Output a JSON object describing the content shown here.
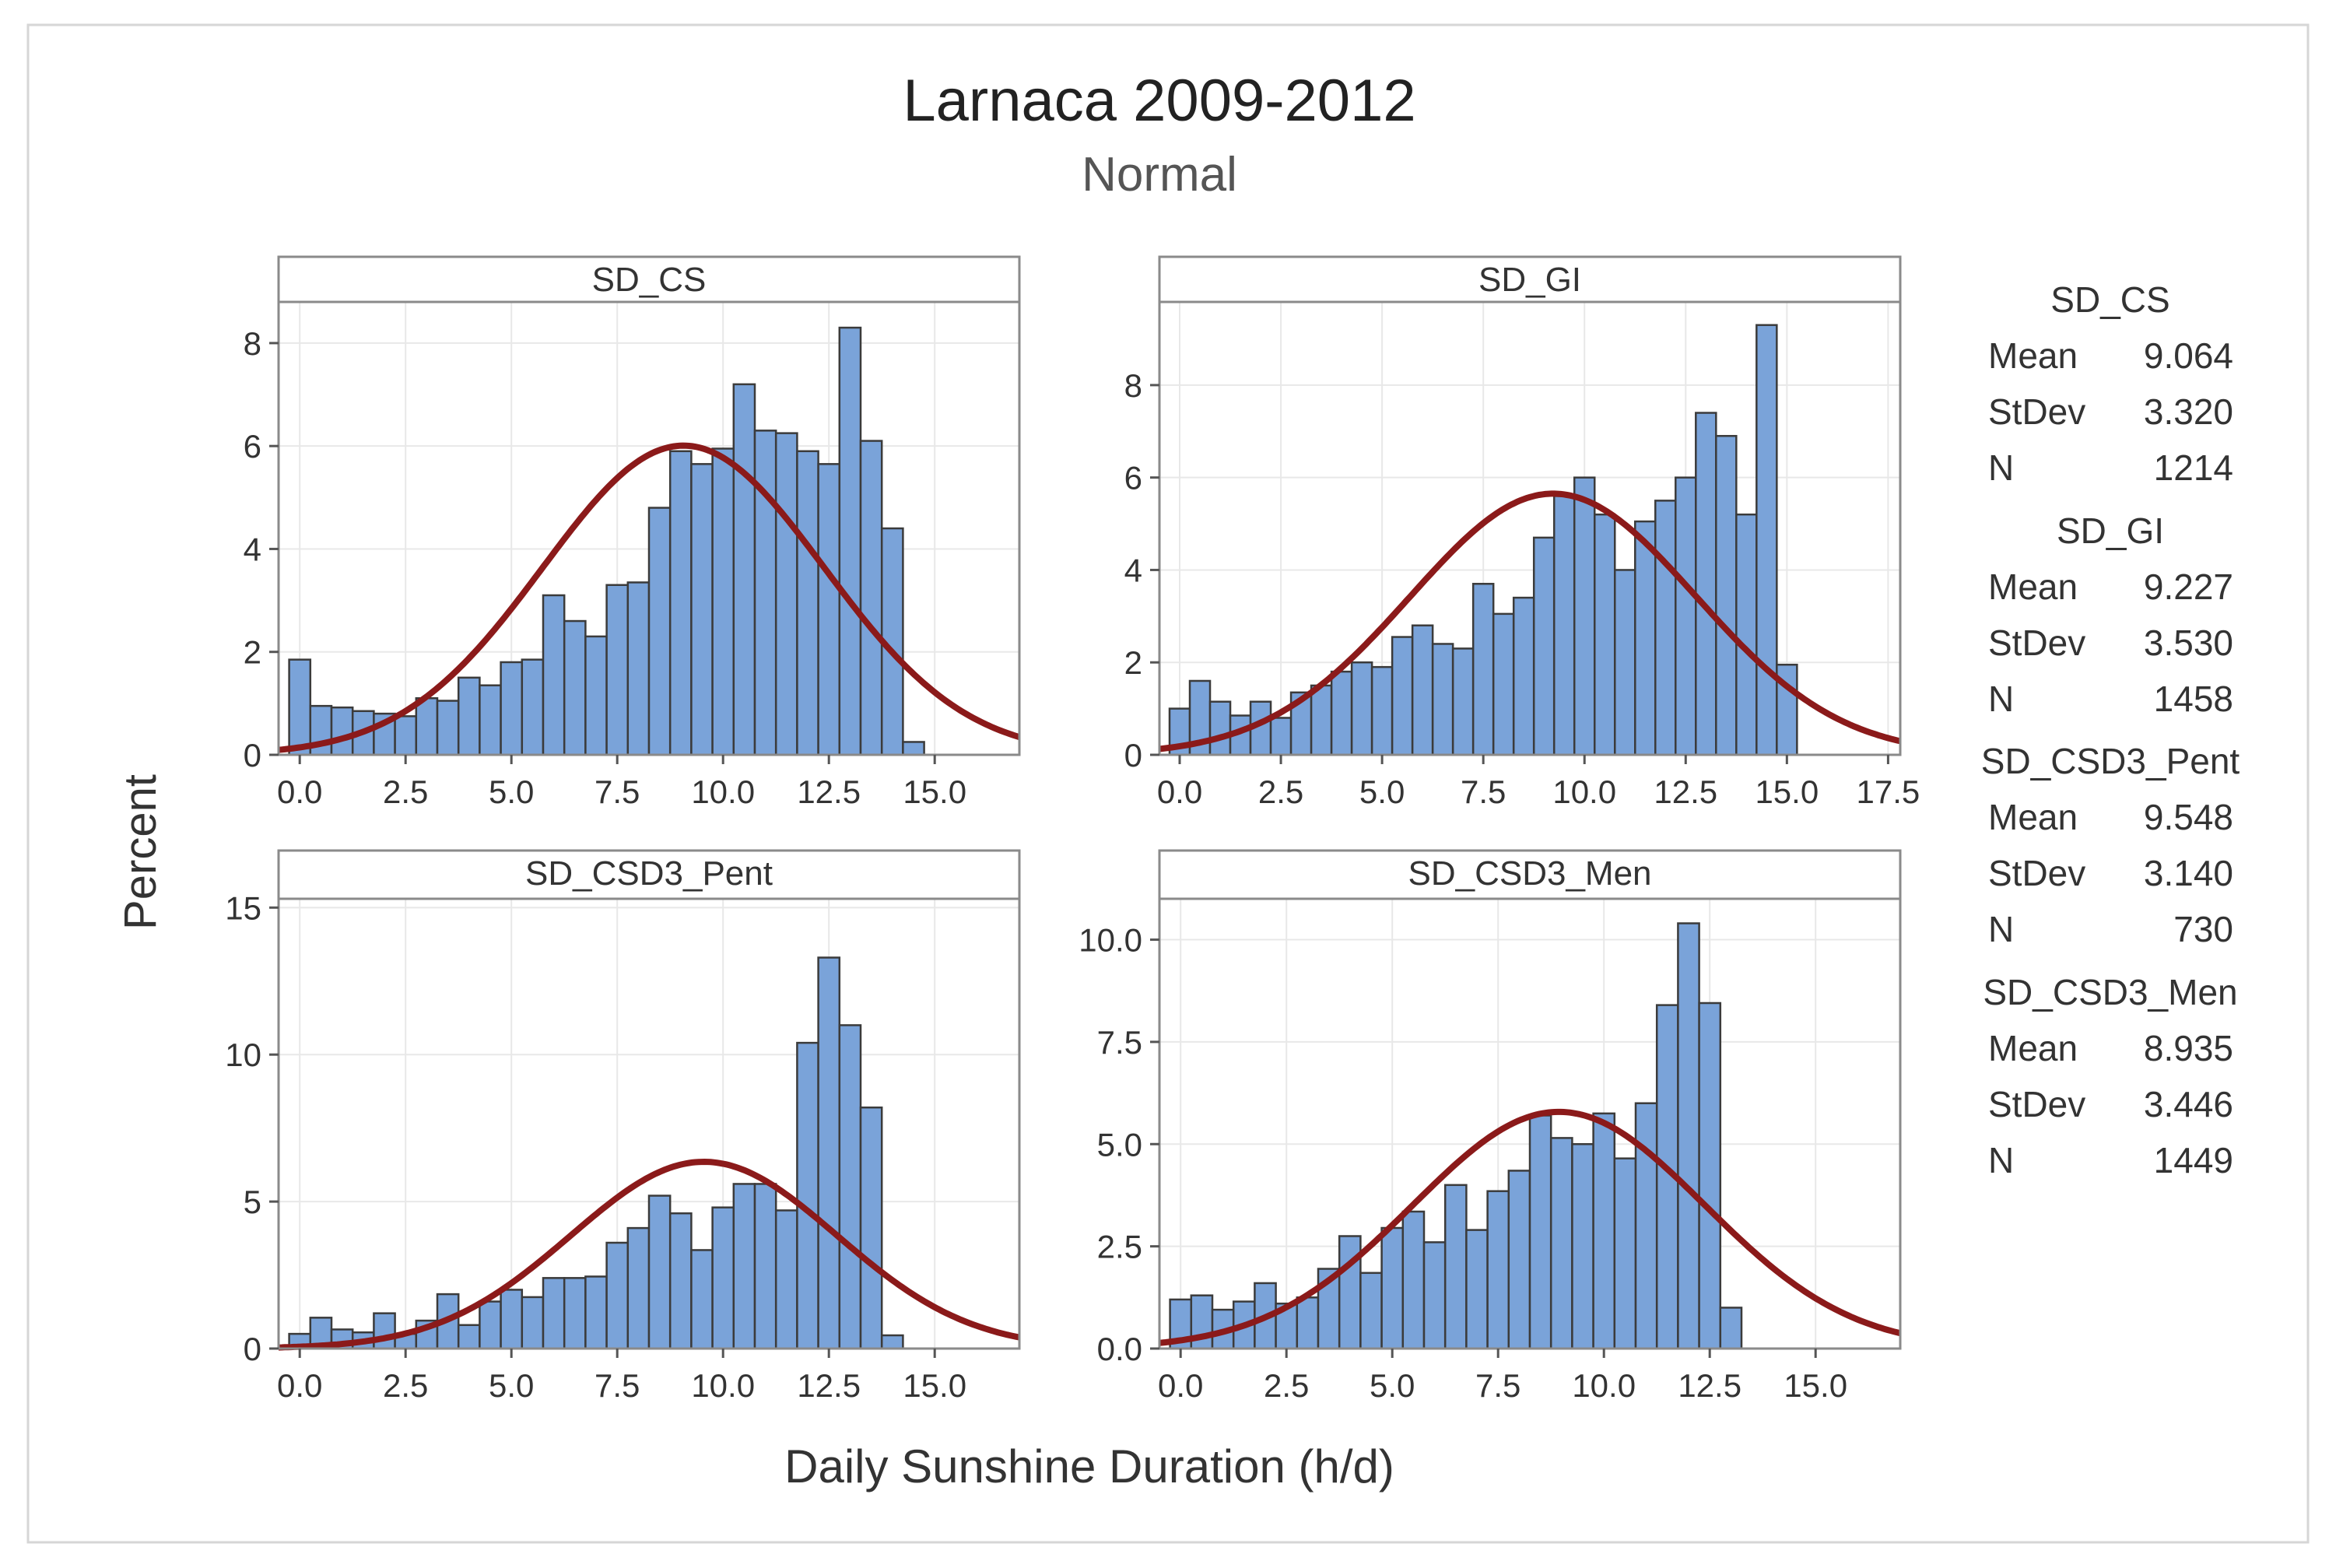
{
  "title": "Larnaca 2009-2012",
  "subtitle": "Normal",
  "ylabel": "Percent",
  "xlabel": "Daily Sunshine Duration (h/d)",
  "colors": {
    "bar_fill": "#7aa3d9",
    "bar_stroke": "#3b3b3b",
    "curve": "#8b1a1a",
    "frame": "#8a8a8a",
    "grid": "#e8e8e8",
    "strip_fill": "#ffffff"
  },
  "stats_labels": {
    "mean": "Mean",
    "stdev": "StDev",
    "n": "N"
  },
  "chart_data": [
    {
      "type": "bar",
      "name": "SD_CS",
      "bin_start": -0.25,
      "bin_width": 0.5,
      "values": [
        1.85,
        0.95,
        0.92,
        0.85,
        0.8,
        0.75,
        1.1,
        1.05,
        1.5,
        1.35,
        1.8,
        1.85,
        3.1,
        2.6,
        2.3,
        3.3,
        3.35,
        4.8,
        5.9,
        5.65,
        5.95,
        7.2,
        6.3,
        6.25,
        5.9,
        5.65,
        8.3,
        6.1,
        4.4,
        0.25
      ],
      "xlim": [
        -0.5,
        17.0
      ],
      "xticks": [
        "0.0",
        "2.5",
        "5.0",
        "7.5",
        "10.0",
        "12.5",
        "15.0"
      ],
      "xtick_values": [
        0,
        2.5,
        5,
        7.5,
        10,
        12.5,
        15
      ],
      "ylim": [
        0,
        8.8
      ],
      "yticks": [
        "0",
        "2",
        "4",
        "6",
        "8"
      ],
      "ytick_values": [
        0,
        2,
        4,
        6,
        8
      ],
      "mean": "9.064",
      "stdev": "3.320",
      "n": "1214"
    },
    {
      "type": "bar",
      "name": "SD_GI",
      "bin_start": -0.25,
      "bin_width": 0.5,
      "values": [
        1.0,
        1.6,
        1.15,
        0.85,
        1.15,
        0.8,
        1.35,
        1.5,
        1.8,
        2.0,
        1.9,
        2.55,
        2.8,
        2.4,
        2.3,
        3.7,
        3.05,
        3.4,
        4.7,
        5.6,
        6.0,
        5.2,
        4.0,
        5.05,
        5.5,
        6.0,
        7.4,
        6.9,
        5.2,
        9.3,
        1.95
      ],
      "xlim": [
        -0.5,
        17.8
      ],
      "xticks": [
        "0.0",
        "2.5",
        "5.0",
        "7.5",
        "10.0",
        "12.5",
        "15.0",
        "17.5"
      ],
      "xtick_values": [
        0,
        2.5,
        5,
        7.5,
        10,
        12.5,
        15,
        17.5
      ],
      "ylim": [
        0,
        9.8
      ],
      "yticks": [
        "0",
        "2",
        "4",
        "6",
        "8"
      ],
      "ytick_values": [
        0,
        2,
        4,
        6,
        8
      ],
      "mean": "9.227",
      "stdev": "3.530",
      "n": "1458"
    },
    {
      "type": "bar",
      "name": "SD_CSD3_Pent",
      "bin_start": -0.25,
      "bin_width": 0.5,
      "values": [
        0.5,
        1.05,
        0.65,
        0.55,
        1.2,
        0.5,
        0.95,
        1.85,
        0.8,
        1.6,
        2.0,
        1.75,
        2.4,
        2.4,
        2.45,
        3.6,
        4.1,
        5.2,
        4.6,
        3.35,
        4.8,
        5.6,
        5.6,
        4.7,
        10.4,
        13.3,
        11.0,
        8.2,
        0.45
      ],
      "xlim": [
        -0.5,
        17.0
      ],
      "xticks": [
        "0.0",
        "2.5",
        "5.0",
        "7.5",
        "10.0",
        "12.5",
        "15.0"
      ],
      "xtick_values": [
        0,
        2.5,
        5,
        7.5,
        10,
        12.5,
        15
      ],
      "ylim": [
        0,
        15.3
      ],
      "yticks": [
        "0",
        "5",
        "10",
        "15"
      ],
      "ytick_values": [
        0,
        5,
        10,
        15
      ],
      "mean": "9.548",
      "stdev": "3.140",
      "n": "730"
    },
    {
      "type": "bar",
      "name": "SD_CSD3_Men",
      "bin_start": -0.25,
      "bin_width": 0.5,
      "values": [
        1.2,
        1.3,
        0.95,
        1.15,
        1.6,
        1.1,
        1.25,
        1.95,
        2.75,
        1.85,
        2.95,
        3.35,
        2.6,
        4.0,
        2.9,
        3.85,
        4.35,
        5.7,
        5.15,
        5.0,
        5.75,
        4.65,
        6.0,
        8.4,
        10.4,
        8.45,
        1.0
      ],
      "xlim": [
        -0.5,
        17.0
      ],
      "xticks": [
        "0.0",
        "2.5",
        "5.0",
        "7.5",
        "10.0",
        "12.5",
        "15.0"
      ],
      "xtick_values": [
        0,
        2.5,
        5,
        7.5,
        10,
        12.5,
        15
      ],
      "ylim": [
        0,
        11.0
      ],
      "yticks": [
        "0.0",
        "2.5",
        "5.0",
        "7.5",
        "10.0"
      ],
      "ytick_values": [
        0,
        2.5,
        5,
        7.5,
        10
      ],
      "mean": "8.935",
      "stdev": "3.446",
      "n": "1449"
    }
  ]
}
